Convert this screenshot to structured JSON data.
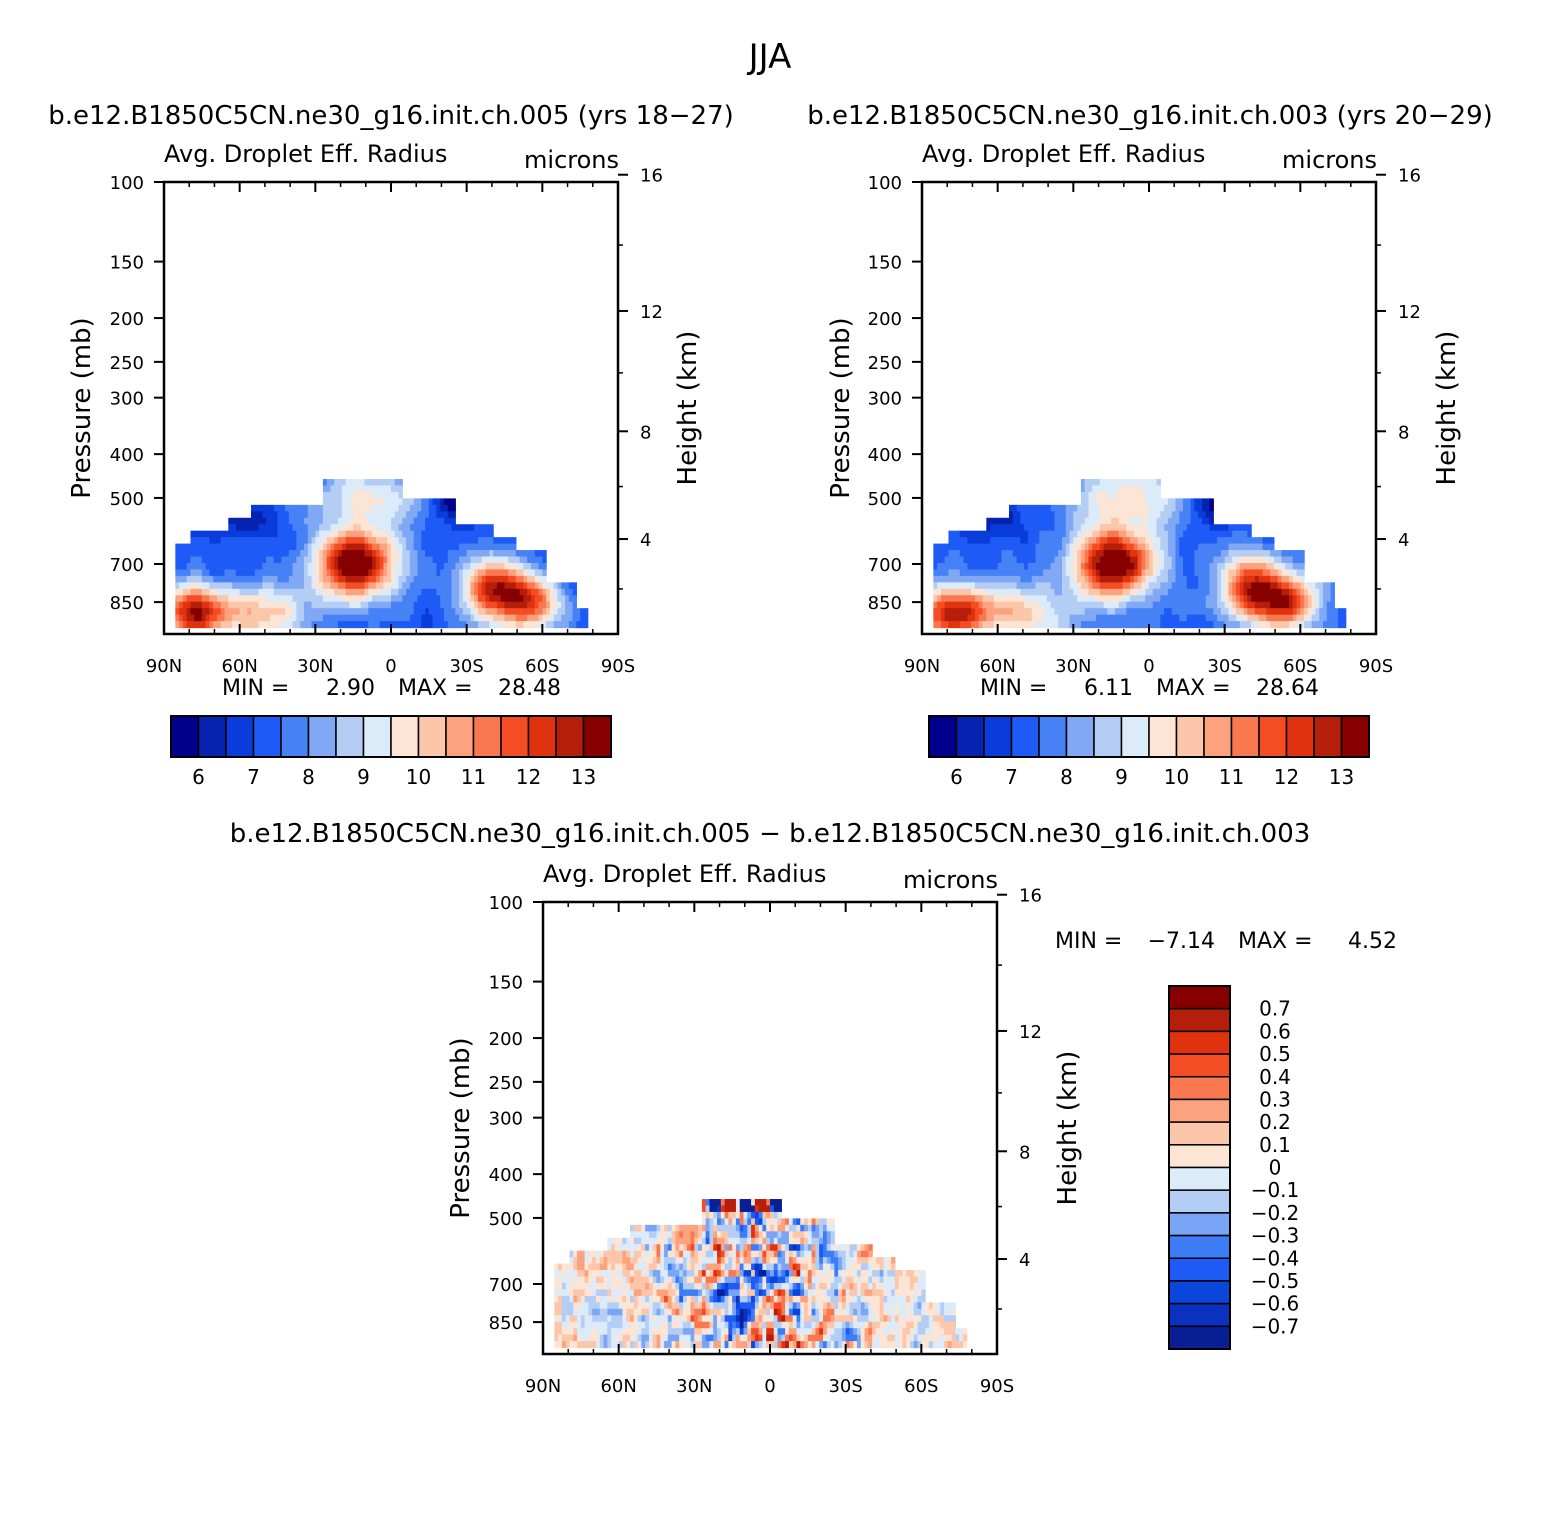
{
  "figure": {
    "title": "JJA",
    "diff_title": "b.e12.B1850C5CN.ne30_g16.init.ch.005 − b.e12.B1850C5CN.ne30_g16.init.ch.003"
  },
  "colors": {
    "abs_scale": [
      "#00008c",
      "#0523b0",
      "#0a3cdc",
      "#1e5af5",
      "#4682f5",
      "#80a8f5",
      "#b4cdf5",
      "#dcebf9",
      "#fde5d5",
      "#fcc6ab",
      "#fca27e",
      "#f97850",
      "#f54d23",
      "#e0320f",
      "#b41e0a",
      "#870000"
    ],
    "diff_scale": [
      "#0a1e96",
      "#0a32be",
      "#0a46dc",
      "#1e5af5",
      "#3c7df5",
      "#78a5f5",
      "#b4cdf5",
      "#dcebf9",
      "#fde5d5",
      "#fcc6ab",
      "#fca27e",
      "#f97850",
      "#f54d23",
      "#e0320f",
      "#b41e0a",
      "#870000"
    ]
  },
  "chart_data": [
    {
      "type": "heatmap",
      "title": "b.e12.B1850C5CN.ne30_g16.init.ch.005 (yrs 18−27)",
      "subtitle_left": "Avg. Droplet Eff. Radius",
      "subtitle_right": "microns",
      "xlabel": "",
      "ylabel": "Pressure (mb)",
      "ylabel_right": "Height (km)",
      "x_ticks": [
        "90N",
        "60N",
        "30N",
        "0",
        "30S",
        "60S",
        "90S"
      ],
      "x_range": [
        90,
        -90
      ],
      "y_ticks": [
        100,
        150,
        200,
        250,
        300,
        400,
        500,
        700,
        850
      ],
      "y_range": [
        100,
        1000
      ],
      "y_scale": "log",
      "y_right_ticks": [
        16,
        12,
        8,
        4
      ],
      "stats": {
        "min_label": "MIN =",
        "min": "2.90",
        "max_label": "MAX =",
        "max": "28.48"
      },
      "colorbar_labels": [
        "6",
        "7",
        "8",
        "9",
        "10",
        "11",
        "12",
        "13"
      ],
      "levels": [
        5.5,
        6,
        6.5,
        7,
        7.5,
        8,
        8.5,
        9,
        9.5,
        10,
        10.5,
        11,
        11.5,
        12,
        12.5,
        13,
        13.5
      ]
    },
    {
      "type": "heatmap",
      "title": "b.e12.B1850C5CN.ne30_g16.init.ch.003 (yrs 20−29)",
      "subtitle_left": "Avg. Droplet Eff. Radius",
      "subtitle_right": "microns",
      "xlabel": "",
      "ylabel": "Pressure (mb)",
      "ylabel_right": "Height (km)",
      "x_ticks": [
        "90N",
        "60N",
        "30N",
        "0",
        "30S",
        "60S",
        "90S"
      ],
      "x_range": [
        90,
        -90
      ],
      "y_ticks": [
        100,
        150,
        200,
        250,
        300,
        400,
        500,
        700,
        850
      ],
      "y_range": [
        100,
        1000
      ],
      "y_scale": "log",
      "y_right_ticks": [
        16,
        12,
        8,
        4
      ],
      "stats": {
        "min_label": "MIN =",
        "min": "6.11",
        "max_label": "MAX =",
        "max": "28.64"
      },
      "colorbar_labels": [
        "6",
        "7",
        "8",
        "9",
        "10",
        "11",
        "12",
        "13"
      ],
      "levels": [
        5.5,
        6,
        6.5,
        7,
        7.5,
        8,
        8.5,
        9,
        9.5,
        10,
        10.5,
        11,
        11.5,
        12,
        12.5,
        13,
        13.5
      ]
    },
    {
      "type": "heatmap",
      "subtitle_left": "Avg. Droplet Eff. Radius",
      "subtitle_right": "microns",
      "xlabel": "",
      "ylabel": "Pressure (mb)",
      "ylabel_right": "Height (km)",
      "x_ticks": [
        "90N",
        "60N",
        "30N",
        "0",
        "30S",
        "60S",
        "90S"
      ],
      "x_range": [
        90,
        -90
      ],
      "y_ticks": [
        100,
        150,
        200,
        250,
        300,
        400,
        500,
        700,
        850
      ],
      "y_range": [
        100,
        1000
      ],
      "y_scale": "log",
      "y_right_ticks": [
        16,
        12,
        8,
        4
      ],
      "stats": {
        "min_label": "MIN =",
        "min": "−7.14",
        "max_label": "MAX =",
        "max": "4.52"
      },
      "colorbar_labels": [
        "0.7",
        "0.6",
        "0.5",
        "0.4",
        "0.3",
        "0.2",
        "0.1",
        "0",
        "−0.1",
        "−0.2",
        "−0.3",
        "−0.4",
        "−0.5",
        "−0.6",
        "−0.7"
      ],
      "levels": [
        -0.75,
        -0.65,
        -0.55,
        -0.45,
        -0.35,
        -0.25,
        -0.15,
        -0.05,
        0.05,
        0.15,
        0.25,
        0.35,
        0.45,
        0.55,
        0.65,
        0.75
      ]
    }
  ]
}
